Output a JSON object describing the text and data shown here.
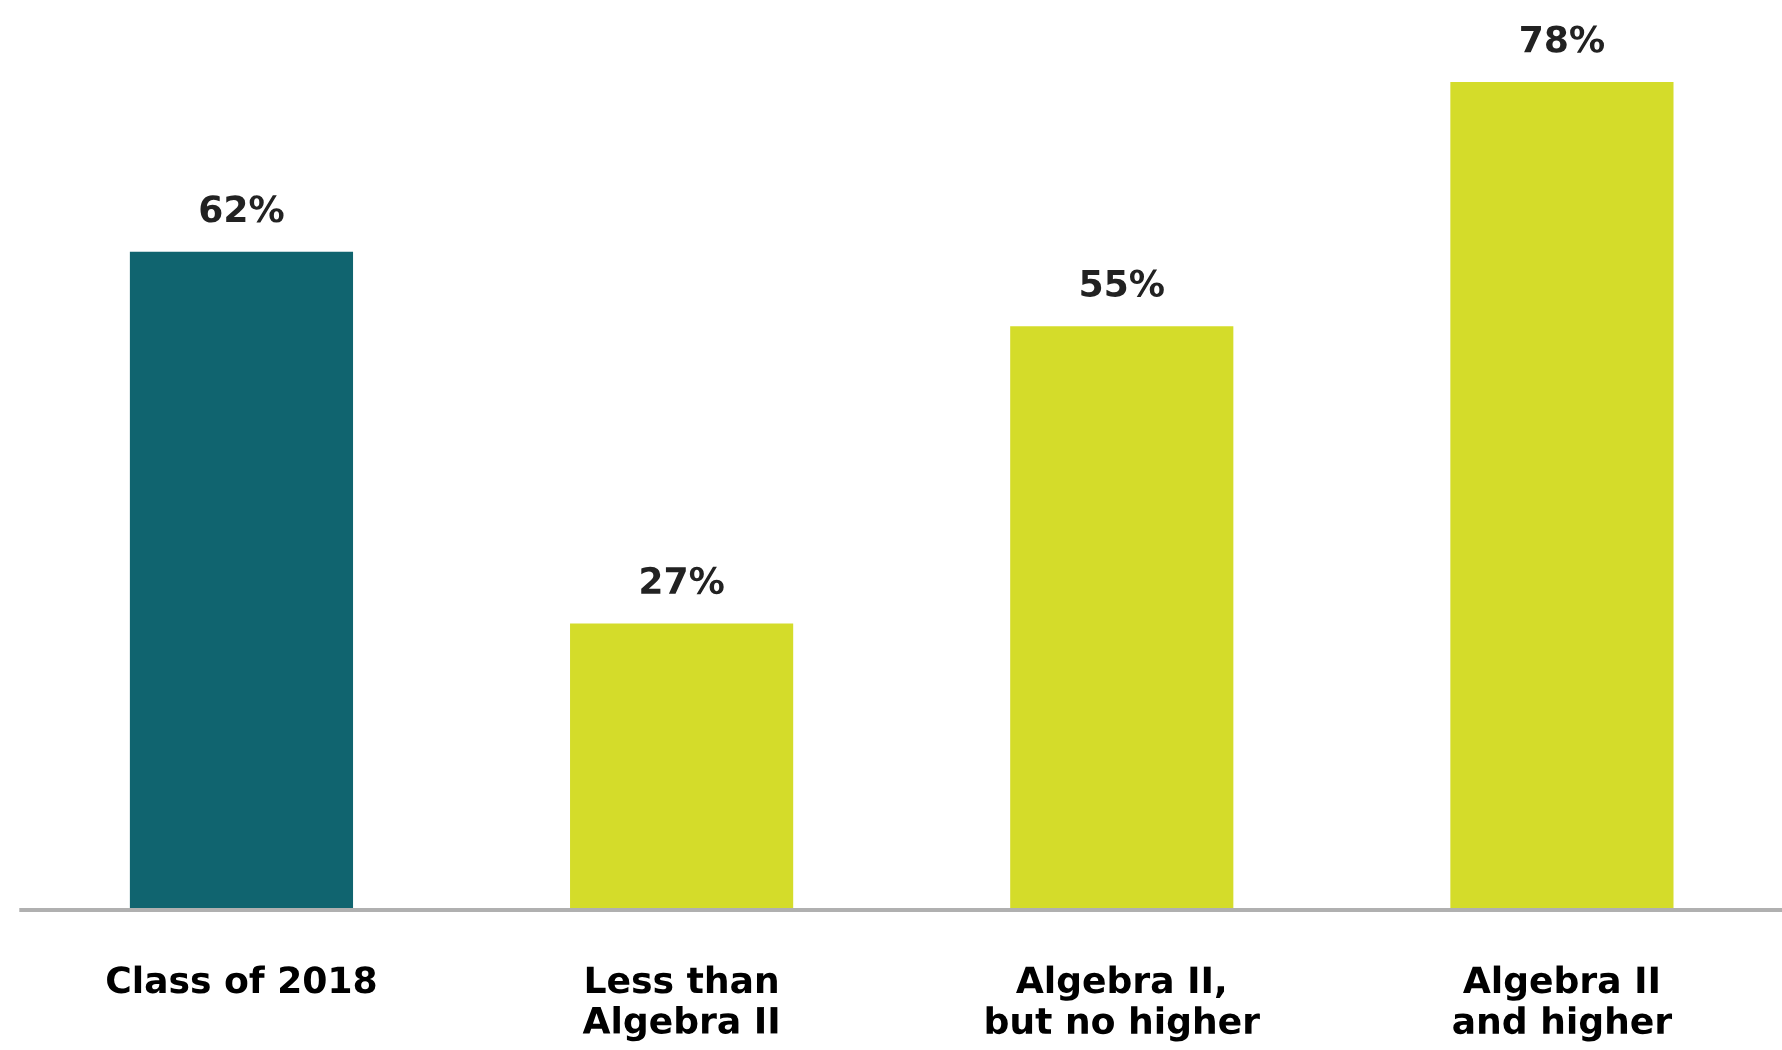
{
  "chart_data": {
    "type": "bar",
    "categories": [
      "Class of 2018",
      "Less than\nAlgebra II",
      "Algebra II,\nbut no higher",
      "Algebra II\nand higher"
    ],
    "values": [
      62,
      27,
      55,
      78
    ],
    "colors": [
      "#10646f",
      "#d4dc2a",
      "#d4dc2a",
      "#d4dc2a"
    ],
    "value_labels": [
      "62%",
      "27%",
      "55%",
      "78%"
    ],
    "grid": false,
    "legend": false
  }
}
